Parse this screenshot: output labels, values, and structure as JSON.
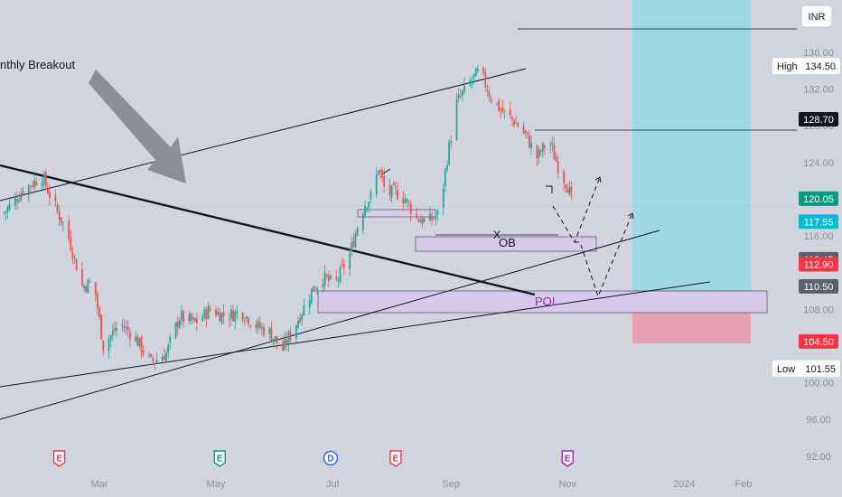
{
  "currency_button": "INR",
  "colors": {
    "background": "#d1d4dc",
    "up_candle": "#26a69a",
    "down_candle": "#ef5350",
    "target_zone": "#9fd8e2",
    "stop_zone": "#e8a1b2",
    "zone_fill": "#d8c8ec",
    "poi_text": "#9c27b0",
    "tag_dark": "#131722",
    "tag_teal": "#089981",
    "tag_cyan": "#00bcd4",
    "tag_gray": "#5d606b",
    "tag_red": "#f23645",
    "event_red": "#f23645",
    "event_green": "#089981",
    "event_blue": "#2962ff",
    "event_purple": "#9c27b0"
  },
  "annotations": {
    "breakout_text": "nthly Breakout",
    "ob_label": "OB",
    "poi_label": "POI",
    "x_mark": "X"
  },
  "price_tags": [
    {
      "label": "",
      "value": "128.70",
      "color": "#131722"
    },
    {
      "label": "",
      "value": "120.05",
      "color": "#089981"
    },
    {
      "label": "",
      "value": "117.55",
      "color": "#00bcd4"
    },
    {
      "label": "",
      "value": "113.45",
      "color": "#5d606b"
    },
    {
      "label": "",
      "value": "112.90",
      "color": "#f23645"
    },
    {
      "label": "",
      "value": "110.50",
      "color": "#5d606b"
    },
    {
      "label": "",
      "value": "104.50",
      "color": "#f23645"
    }
  ],
  "high_low_labels": [
    {
      "label": "High",
      "value": "134.50"
    },
    {
      "label": "Low",
      "value": "101.55"
    }
  ],
  "events": [
    {
      "letter": "E",
      "color": "#f23645",
      "date": "2023-02-08"
    },
    {
      "letter": "E",
      "color": "#089981",
      "date": "2023-05-03"
    },
    {
      "letter": "D",
      "color": "#2962ff",
      "date": "2023-06-30"
    },
    {
      "letter": "E",
      "color": "#f23645",
      "date": "2023-08-03"
    },
    {
      "letter": "E",
      "color": "#9c27b0",
      "date": "2023-11-01"
    }
  ],
  "chart_data": {
    "type": "candlestick",
    "title": "",
    "x_ticks": [
      "Mar",
      "May",
      "Jul",
      "Sep",
      "Nov",
      "2024",
      "Feb"
    ],
    "y_ticks": [
      "136.00",
      "132.00",
      "128.00",
      "124.00",
      "120.00",
      "116.00",
      "108.00",
      "100.00",
      "96.00",
      "92.00"
    ],
    "ylim": [
      90.5,
      141.7
    ],
    "xlim": [
      "2023-01-08",
      "2024-02-28"
    ],
    "series": [
      {
        "name": "",
        "points": [
          [
            "2023-01-10",
            118.5
          ],
          [
            "2023-01-20",
            121.0
          ],
          [
            "2023-01-30",
            122.5
          ],
          [
            "2023-02-05",
            119.5
          ],
          [
            "2023-02-12",
            116.5
          ],
          [
            "2023-02-20",
            110.5
          ],
          [
            "2023-02-26",
            111.0
          ],
          [
            "2023-03-03",
            104.0
          ],
          [
            "2023-03-12",
            106.5
          ],
          [
            "2023-03-20",
            104.8
          ],
          [
            "2023-03-28",
            102.2
          ],
          [
            "2023-04-05",
            103.2
          ],
          [
            "2023-04-12",
            107.2
          ],
          [
            "2023-04-20",
            106.5
          ],
          [
            "2023-04-28",
            108.0
          ],
          [
            "2023-05-06",
            107.2
          ],
          [
            "2023-05-14",
            107.8
          ],
          [
            "2023-05-22",
            106.2
          ],
          [
            "2023-05-29",
            105.5
          ],
          [
            "2023-06-05",
            103.6
          ],
          [
            "2023-06-12",
            106.5
          ],
          [
            "2023-06-20",
            110.0
          ],
          [
            "2023-06-26",
            111.5
          ],
          [
            "2023-07-02",
            110.6
          ],
          [
            "2023-07-10",
            114.0
          ],
          [
            "2023-07-15",
            117.8
          ],
          [
            "2023-07-18",
            119.5
          ],
          [
            "2023-07-22",
            120.5
          ],
          [
            "2023-07-25",
            123.5
          ],
          [
            "2023-07-29",
            120.5
          ],
          [
            "2023-08-03",
            120.8
          ],
          [
            "2023-08-08",
            120.0
          ],
          [
            "2023-08-14",
            118.0
          ],
          [
            "2023-08-20",
            117.5
          ],
          [
            "2023-08-26",
            118.5
          ],
          [
            "2023-08-30",
            124.5
          ],
          [
            "2023-09-04",
            130.5
          ],
          [
            "2023-09-10",
            132.5
          ],
          [
            "2023-09-16",
            134.0
          ],
          [
            "2023-09-22",
            131.0
          ],
          [
            "2023-09-28",
            129.5
          ],
          [
            "2023-10-04",
            128.5
          ],
          [
            "2023-10-10",
            127.0
          ],
          [
            "2023-10-16",
            124.5
          ],
          [
            "2023-10-22",
            126.5
          ],
          [
            "2023-10-28",
            123.0
          ],
          [
            "2023-11-01",
            121.5
          ],
          [
            "2023-11-03",
            120.0
          ]
        ]
      }
    ],
    "grid": false,
    "trade_setup": {
      "target_top": 142.0,
      "entry": 110.5,
      "stop": 104.5
    }
  }
}
